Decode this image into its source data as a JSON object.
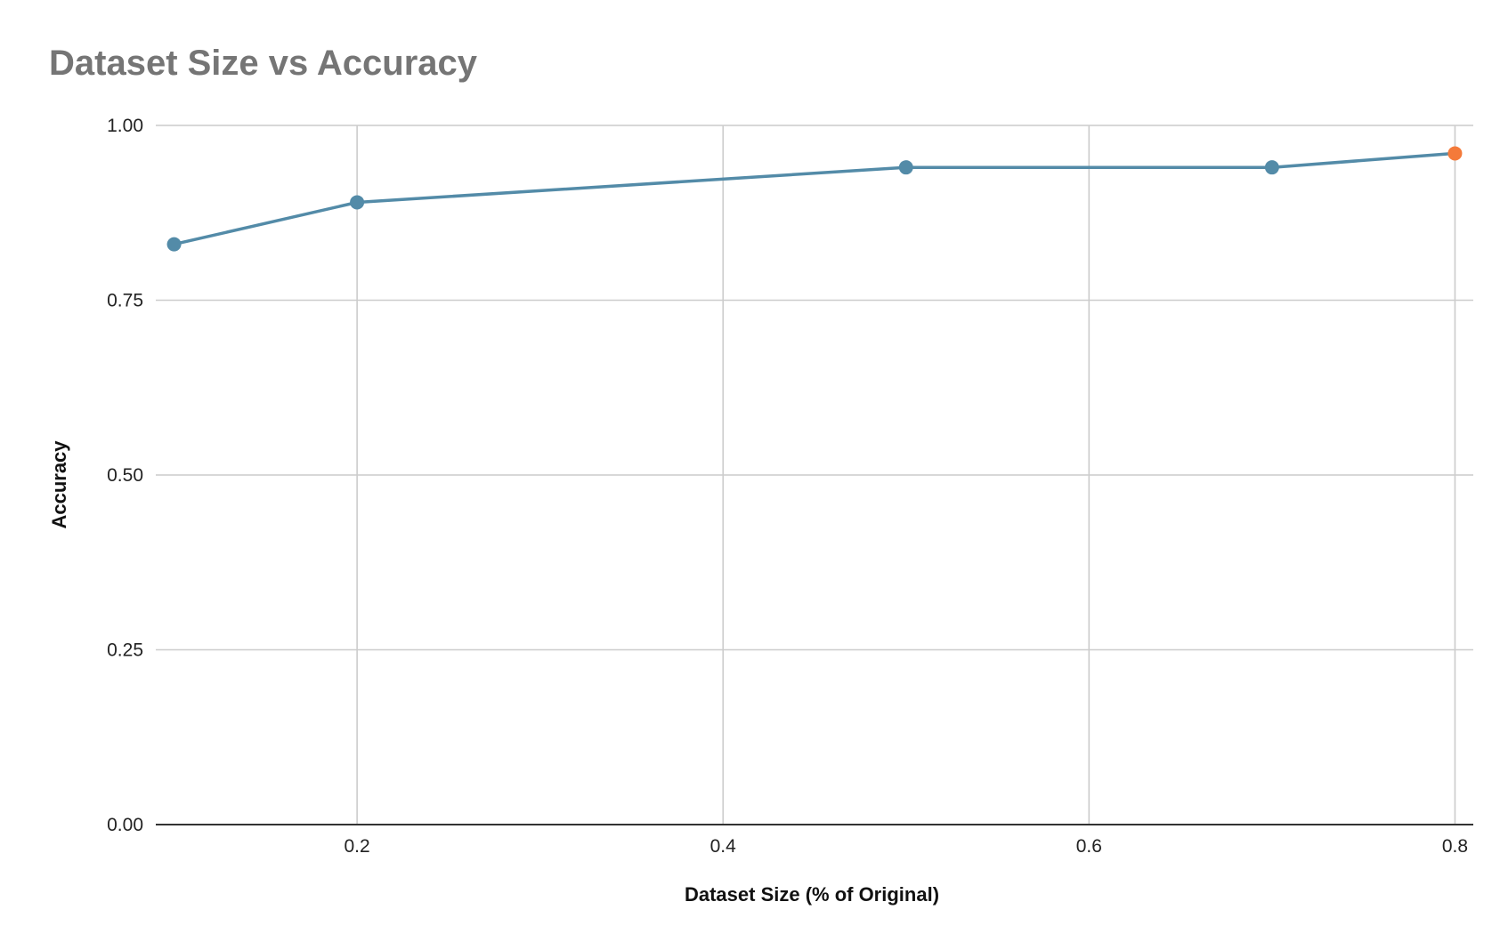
{
  "chart_data": {
    "type": "line",
    "title": "Dataset Size vs Accuracy",
    "xlabel": "Dataset Size (% of Original)",
    "ylabel": "Accuracy",
    "xlim": [
      0.09,
      0.81
    ],
    "ylim": [
      0,
      1
    ],
    "x_ticks": [
      0.2,
      0.4,
      0.6,
      0.8
    ],
    "x_tick_labels": [
      "0.2",
      "0.4",
      "0.6",
      "0.8"
    ],
    "y_ticks": [
      0,
      0.25,
      0.5,
      0.75,
      1
    ],
    "y_tick_labels": [
      "0.00",
      "0.25",
      "0.50",
      "0.75",
      "1.00"
    ],
    "grid": true,
    "series": [
      {
        "x": [
          0.1,
          0.2,
          0.5,
          0.7,
          0.8
        ],
        "y": [
          0.83,
          0.89,
          0.94,
          0.94,
          0.96
        ],
        "color": "#538BA8",
        "highlight_index": 4,
        "highlight_color": "#F47A3A"
      }
    ]
  }
}
